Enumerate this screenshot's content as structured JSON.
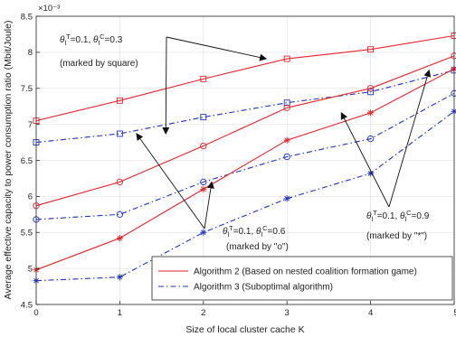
{
  "chart_data": {
    "type": "line",
    "xlabel": "Size of local cluster cache K",
    "ylabel": "Average effective capacity to power consumption ratio (Mbit/Joule)",
    "y_exponent": "×10⁻³",
    "xlim": [
      0,
      5
    ],
    "ylim": [
      4.5,
      8.5
    ],
    "x_ticks": [
      "0",
      "1",
      "2",
      "3",
      "4",
      "5"
    ],
    "y_ticks": [
      "4.5",
      "5",
      "5.5",
      "6",
      "6.5",
      "7",
      "7.5",
      "8",
      "8.5"
    ],
    "grid": true,
    "x": [
      0,
      1,
      2,
      3,
      4,
      5
    ],
    "legend": {
      "position": "bottom-right",
      "entries": [
        {
          "label": "Algorithm 2 (Based on nested coalition formation game)",
          "color": "#e8232a",
          "dash": "solid"
        },
        {
          "label": "Algorithm 3 (Suboptimal algorithm)",
          "color": "#1f33c9",
          "dash": "dashdot"
        }
      ]
    },
    "series": [
      {
        "algorithm": "Algorithm 2",
        "setting": "square",
        "color": "#e8232a",
        "marker": "square",
        "dash": "solid",
        "values": [
          7.05,
          7.33,
          7.63,
          7.91,
          8.04,
          8.23
        ]
      },
      {
        "algorithm": "Algorithm 3",
        "setting": "square",
        "color": "#1f33c9",
        "marker": "square",
        "dash": "dashdot",
        "values": [
          6.75,
          6.87,
          7.1,
          7.3,
          7.45,
          7.75
        ]
      },
      {
        "algorithm": "Algorithm 2",
        "setting": "circle",
        "color": "#e8232a",
        "marker": "circle",
        "dash": "solid",
        "values": [
          5.87,
          6.2,
          6.7,
          7.23,
          7.5,
          7.95
        ]
      },
      {
        "algorithm": "Algorithm 3",
        "setting": "circle",
        "color": "#1f33c9",
        "marker": "circle",
        "dash": "dashdot",
        "values": [
          5.68,
          5.75,
          6.2,
          6.55,
          6.8,
          7.43
        ]
      },
      {
        "algorithm": "Algorithm 2",
        "setting": "star",
        "color": "#e8232a",
        "marker": "star",
        "dash": "solid",
        "values": [
          4.98,
          5.42,
          6.1,
          6.78,
          7.16,
          7.77
        ]
      },
      {
        "algorithm": "Algorithm 3",
        "setting": "star",
        "color": "#1f33c9",
        "marker": "star",
        "dash": "dashdot",
        "values": [
          4.83,
          4.88,
          5.5,
          5.97,
          6.32,
          7.18
        ]
      }
    ],
    "annotations": [
      {
        "id": "square",
        "theta_t": "0.1",
        "theta_c": "0.3",
        "marked_by": "(marked by square)",
        "arrows_to": [
          [
            2.75,
            7.91
          ],
          [
            1.55,
            6.87
          ]
        ]
      },
      {
        "id": "circle",
        "theta_t": "0.1",
        "theta_c": "0.6",
        "marked_by": "(marked by \"o\")",
        "arrows_to": [
          [
            1.2,
            6.87
          ],
          [
            2.1,
            6.2
          ]
        ]
      },
      {
        "id": "star",
        "theta_t": "0.1",
        "theta_c": "0.9",
        "marked_by": "(marked by \"*\")",
        "arrows_to": [
          [
            3.65,
            7.16
          ],
          [
            4.7,
            7.75
          ]
        ]
      }
    ]
  }
}
